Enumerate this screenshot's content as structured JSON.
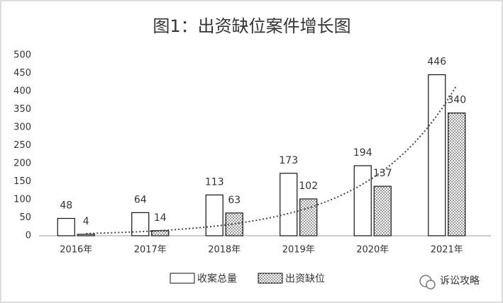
{
  "chart_data": {
    "type": "bar",
    "title": "图1：出资缺位案件增长图",
    "categories": [
      "2016年",
      "2017年",
      "2018年",
      "2019年",
      "2020年",
      "2021年"
    ],
    "series": [
      {
        "name": "收案总量",
        "color": "#ffffff",
        "values": [
          48,
          64,
          113,
          173,
          194,
          446
        ]
      },
      {
        "name": "出资缺位",
        "color": "dots",
        "values": [
          4,
          14,
          63,
          102,
          137,
          340
        ]
      }
    ],
    "ylim": [
      0,
      500
    ],
    "yticks": [
      0,
      50,
      100,
      150,
      200,
      250,
      300,
      350,
      400,
      450,
      500
    ],
    "grid": false,
    "legend": "bottom",
    "trendline": "exponential",
    "watermark": "诉讼攻略"
  }
}
